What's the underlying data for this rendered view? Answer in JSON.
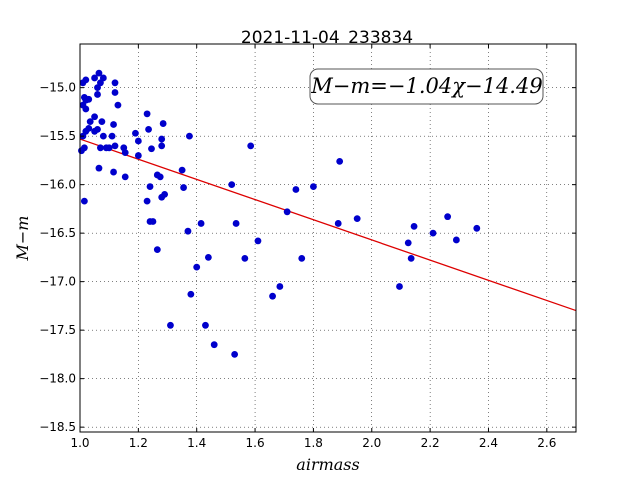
{
  "chart_data": {
    "type": "scatter",
    "title": "2021-11-04_233834",
    "xlabel": "airmass",
    "ylabel": "M−m",
    "xlim": [
      1.0,
      2.7
    ],
    "ylim": [
      -18.55,
      -14.55
    ],
    "xticks": [
      1.0,
      1.2,
      1.4,
      1.6,
      1.8,
      2.0,
      2.2,
      2.4,
      2.6
    ],
    "xtick_labels": [
      "1.0",
      "1.2",
      "1.4",
      "1.6",
      "1.8",
      "2.0",
      "2.2",
      "2.4",
      "2.6"
    ],
    "yticks": [
      -15.0,
      -15.5,
      -16.0,
      -16.5,
      -17.0,
      -17.5,
      -18.0,
      -18.5
    ],
    "ytick_labels": [
      "−15.0",
      "−15.5",
      "−16.0",
      "−16.5",
      "−17.0",
      "−17.5",
      "−18.0",
      "−18.5"
    ],
    "grid": true,
    "annotation": "M−m=−1.04χ−14.49",
    "point_color": "#0000cc",
    "fit_color": "#dd0000",
    "fit": {
      "slope": -1.04,
      "intercept": -14.49
    },
    "points": [
      [
        1.01,
        -14.95
      ],
      [
        1.02,
        -14.92
      ],
      [
        1.015,
        -15.1
      ],
      [
        1.02,
        -15.13
      ],
      [
        1.01,
        -15.18
      ],
      [
        1.02,
        -15.22
      ],
      [
        1.03,
        -15.12
      ],
      [
        1.035,
        -15.35
      ],
      [
        1.02,
        -15.45
      ],
      [
        1.01,
        -15.5
      ],
      [
        1.015,
        -15.62
      ],
      [
        1.005,
        -15.65
      ],
      [
        1.03,
        -15.42
      ],
      [
        1.05,
        -14.9
      ],
      [
        1.065,
        -14.85
      ],
      [
        1.07,
        -14.95
      ],
      [
        1.06,
        -15.0
      ],
      [
        1.08,
        -14.9
      ],
      [
        1.06,
        -15.07
      ],
      [
        1.05,
        -15.3
      ],
      [
        1.05,
        -15.45
      ],
      [
        1.06,
        -15.43
      ],
      [
        1.075,
        -15.35
      ],
      [
        1.07,
        -15.62
      ],
      [
        1.08,
        -15.5
      ],
      [
        1.09,
        -15.62
      ],
      [
        1.1,
        -15.62
      ],
      [
        1.11,
        -15.5
      ],
      [
        1.115,
        -15.38
      ],
      [
        1.12,
        -14.95
      ],
      [
        1.12,
        -15.05
      ],
      [
        1.13,
        -15.18
      ],
      [
        1.12,
        -15.6
      ],
      [
        1.065,
        -15.83
      ],
      [
        1.115,
        -15.87
      ],
      [
        1.15,
        -15.62
      ],
      [
        1.155,
        -15.92
      ],
      [
        1.155,
        -15.67
      ],
      [
        1.19,
        -15.47
      ],
      [
        1.2,
        -15.55
      ],
      [
        1.2,
        -15.7
      ],
      [
        1.015,
        -16.17
      ],
      [
        1.23,
        -15.27
      ],
      [
        1.235,
        -15.43
      ],
      [
        1.245,
        -15.63
      ],
      [
        1.265,
        -15.9
      ],
      [
        1.275,
        -15.92
      ],
      [
        1.28,
        -15.53
      ],
      [
        1.28,
        -15.6
      ],
      [
        1.285,
        -15.37
      ],
      [
        1.23,
        -16.17
      ],
      [
        1.24,
        -16.02
      ],
      [
        1.24,
        -16.38
      ],
      [
        1.25,
        -16.38
      ],
      [
        1.265,
        -16.67
      ],
      [
        1.28,
        -16.13
      ],
      [
        1.29,
        -16.1
      ],
      [
        1.31,
        -17.45
      ],
      [
        1.35,
        -15.85
      ],
      [
        1.355,
        -16.03
      ],
      [
        1.37,
        -16.48
      ],
      [
        1.375,
        -15.5
      ],
      [
        1.38,
        -17.13
      ],
      [
        1.4,
        -16.85
      ],
      [
        1.415,
        -16.4
      ],
      [
        1.43,
        -17.45
      ],
      [
        1.44,
        -16.75
      ],
      [
        1.46,
        -17.65
      ],
      [
        1.52,
        -16.0
      ],
      [
        1.53,
        -17.75
      ],
      [
        1.535,
        -16.4
      ],
      [
        1.565,
        -16.76
      ],
      [
        1.585,
        -15.6
      ],
      [
        1.61,
        -16.58
      ],
      [
        1.66,
        -17.15
      ],
      [
        1.685,
        -17.05
      ],
      [
        1.71,
        -16.28
      ],
      [
        1.74,
        -16.05
      ],
      [
        1.76,
        -16.76
      ],
      [
        1.8,
        -16.02
      ],
      [
        1.885,
        -16.4
      ],
      [
        1.89,
        -15.76
      ],
      [
        1.95,
        -16.35
      ],
      [
        2.095,
        -17.05
      ],
      [
        2.125,
        -16.6
      ],
      [
        2.135,
        -16.76
      ],
      [
        2.145,
        -16.43
      ],
      [
        2.21,
        -16.5
      ],
      [
        2.26,
        -16.33
      ],
      [
        2.29,
        -16.57
      ],
      [
        2.36,
        -16.45
      ]
    ]
  }
}
